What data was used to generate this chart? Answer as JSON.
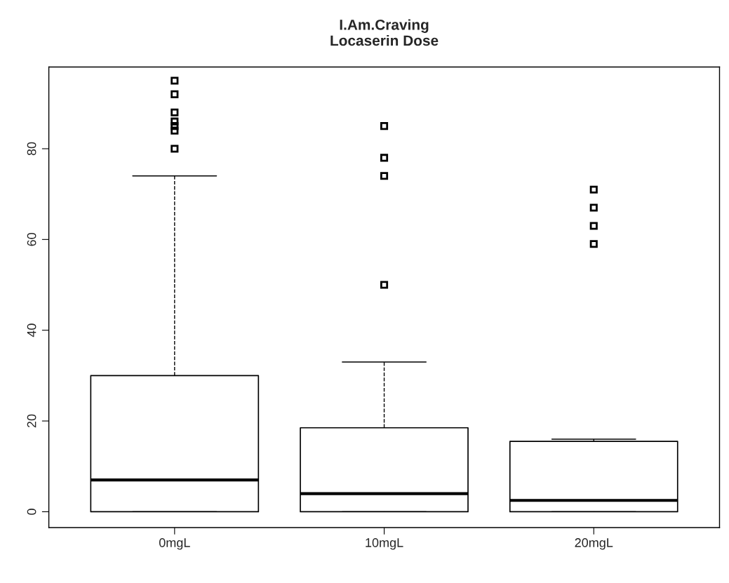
{
  "chart_data": {
    "type": "box",
    "title": "I.Am.Craving\nLocaserin Dose",
    "categories": [
      "0mgL",
      "10mgL",
      "20mgL"
    ],
    "boxes": [
      {
        "low": 0,
        "q1": 0,
        "median": 7,
        "q3": 30,
        "high": 74,
        "outliers": [
          95,
          92,
          88,
          86,
          85,
          84,
          80
        ]
      },
      {
        "low": 0,
        "q1": 0,
        "median": 4,
        "q3": 18.5,
        "high": 33,
        "outliers": [
          85,
          78,
          74,
          50
        ]
      },
      {
        "low": 0,
        "q1": 0,
        "median": 2.5,
        "q3": 15.5,
        "high": 16,
        "outliers": [
          71,
          67,
          63,
          59
        ]
      }
    ],
    "yticks": [
      0,
      20,
      40,
      60,
      80
    ],
    "ylim": [
      -3.5,
      98
    ],
    "marker": "square",
    "grid": false,
    "line_style": "dashed"
  }
}
